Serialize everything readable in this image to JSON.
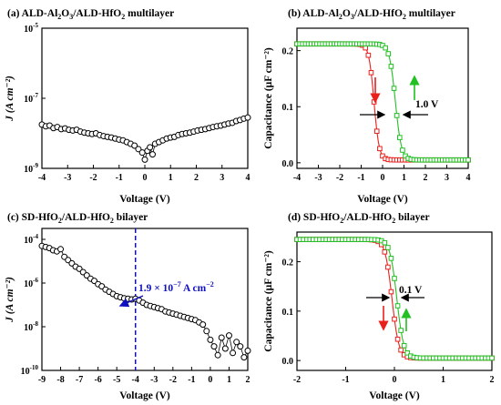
{
  "chart_data": [
    {
      "id": "a",
      "type": "scatter",
      "title_main": "(a) ALD-Al",
      "title_sub1": "2",
      "title_mid1": "O",
      "title_sub2": "3",
      "title_mid2": "/ALD-HfO",
      "title_sub3": "2",
      "title_end": " multilayer",
      "xlabel": "Voltage (V)",
      "ylabel": "J (A cm⁻²)",
      "xlim": [
        -4,
        4
      ],
      "yscale": "log",
      "ylim_exp": [
        -9,
        -5
      ],
      "xticks": [
        "-4",
        "-3",
        "-2",
        "-1",
        "0",
        "1",
        "2",
        "3",
        "4"
      ],
      "ytick_exps": [
        "-5",
        "-7",
        "-9"
      ],
      "series": [
        {
          "marker": "open-circle",
          "color": "#000000",
          "x": [
            -4.0,
            -3.85,
            -3.7,
            -3.55,
            -3.4,
            -3.25,
            -3.1,
            -2.95,
            -2.8,
            -2.65,
            -2.5,
            -2.35,
            -2.2,
            -2.05,
            -1.9,
            -1.75,
            -1.6,
            -1.45,
            -1.3,
            -1.15,
            -1.0,
            -0.85,
            -0.7,
            -0.55,
            -0.4,
            -0.25,
            -0.1,
            0.0,
            0.1,
            0.2,
            0.3,
            0.4,
            0.55,
            0.7,
            0.85,
            1.0,
            1.15,
            1.3,
            1.45,
            1.6,
            1.75,
            1.9,
            2.05,
            2.2,
            2.35,
            2.5,
            2.65,
            2.8,
            2.95,
            3.1,
            3.25,
            3.4,
            3.55,
            3.7,
            3.85,
            4.0
          ],
          "y_log10": [
            -7.75,
            -7.8,
            -7.78,
            -7.85,
            -7.82,
            -7.88,
            -7.86,
            -7.9,
            -7.92,
            -7.9,
            -7.95,
            -7.98,
            -8.0,
            -8.02,
            -8.0,
            -8.05,
            -8.08,
            -8.1,
            -8.12,
            -8.15,
            -8.18,
            -8.2,
            -8.25,
            -8.3,
            -8.35,
            -8.45,
            -8.55,
            -8.75,
            -8.5,
            -8.4,
            -8.6,
            -8.3,
            -8.25,
            -8.2,
            -8.15,
            -8.12,
            -8.1,
            -8.05,
            -8.02,
            -8.0,
            -7.98,
            -7.95,
            -7.92,
            -7.9,
            -7.88,
            -7.85,
            -7.82,
            -7.8,
            -7.78,
            -7.75,
            -7.72,
            -7.7,
            -7.65,
            -7.62,
            -7.58,
            -7.55
          ]
        }
      ]
    },
    {
      "id": "b",
      "type": "line",
      "title_main": "(b) ALD-Al",
      "title_sub1": "2",
      "title_mid1": "O",
      "title_sub2": "3",
      "title_mid2": "/ALD-HfO",
      "title_sub3": "2",
      "title_end": " multilayer",
      "xlabel": "Voltage (V)",
      "ylabel": "Capacitance (μF cm⁻²)",
      "xlim": [
        -4,
        4
      ],
      "ylim": [
        -0.01,
        0.24
      ],
      "xticks": [
        "-4",
        "-3",
        "-2",
        "-1",
        "0",
        "1",
        "2",
        "3",
        "4"
      ],
      "yticks": [
        "0.0",
        "0.1",
        "0.2"
      ],
      "annotation": "1.0 V",
      "series": [
        {
          "color": "#e8201c",
          "marker": "open-square",
          "center": -0.4,
          "width": 0.12
        },
        {
          "color": "#22c022",
          "marker": "open-square",
          "center": 0.6,
          "width": 0.14
        }
      ]
    },
    {
      "id": "c",
      "type": "scatter",
      "title_main": "(c) SD-HfO",
      "title_sub1": "2",
      "title_mid2": "/ALD-HfO",
      "title_sub3": "2",
      "title_end": " bilayer",
      "xlabel": "Voltage (V)",
      "ylabel": "J (A cm⁻²)",
      "xlim": [
        -9,
        2
      ],
      "yscale": "log",
      "ylim_exp": [
        -10,
        -3.5
      ],
      "xticks": [
        "-9",
        "-8",
        "-7",
        "-6",
        "-5",
        "-4",
        "-3",
        "-2",
        "-1",
        "0",
        "1",
        "2"
      ],
      "ytick_exps": [
        "-4",
        "-6",
        "-8",
        "-10"
      ],
      "vline_x": -4,
      "annotation_pre": "1.9 × 10",
      "annotation_sup": "−7",
      "annotation_post": " A cm",
      "annotation_sup2": "−2",
      "series": [
        {
          "marker": "open-circle",
          "color": "#000000",
          "x": [
            -9.0,
            -8.8,
            -8.6,
            -8.4,
            -8.2,
            -8.0,
            -7.8,
            -7.6,
            -7.4,
            -7.2,
            -7.0,
            -6.8,
            -6.6,
            -6.4,
            -6.2,
            -6.0,
            -5.8,
            -5.6,
            -5.4,
            -5.2,
            -5.0,
            -4.8,
            -4.6,
            -4.4,
            -4.2,
            -4.0,
            -3.8,
            -3.6,
            -3.4,
            -3.2,
            -3.0,
            -2.8,
            -2.6,
            -2.4,
            -2.2,
            -2.0,
            -1.8,
            -1.6,
            -1.4,
            -1.2,
            -1.0,
            -0.8,
            -0.6,
            -0.4,
            -0.2,
            0.0,
            0.2,
            0.4,
            0.6,
            0.8,
            1.0,
            1.2,
            1.4,
            1.6,
            1.8,
            2.0
          ],
          "y_log10": [
            -4.3,
            -4.35,
            -4.4,
            -4.5,
            -4.55,
            -4.45,
            -4.8,
            -4.95,
            -5.1,
            -5.25,
            -5.35,
            -5.5,
            -5.65,
            -5.8,
            -5.9,
            -6.05,
            -6.15,
            -6.3,
            -6.4,
            -6.5,
            -6.6,
            -6.65,
            -6.7,
            -6.72,
            -6.75,
            -6.72,
            -6.8,
            -6.9,
            -7.0,
            -7.05,
            -7.1,
            -7.15,
            -7.2,
            -7.3,
            -7.35,
            -7.4,
            -7.45,
            -7.5,
            -7.55,
            -7.6,
            -7.65,
            -7.7,
            -7.8,
            -7.9,
            -8.2,
            -8.6,
            -8.9,
            -9.3,
            -8.5,
            -9.0,
            -8.4,
            -9.2,
            -8.7,
            -8.9,
            -9.4,
            -9.1
          ]
        }
      ]
    },
    {
      "id": "d",
      "type": "line",
      "title_main": "(d) SD-HfO",
      "title_sub1": "2",
      "title_mid2": "/ALD-HfO",
      "title_sub3": "2",
      "title_end": " bilayer",
      "xlabel": "Voltage (V)",
      "ylabel": "Capacitance (μF cm⁻²)",
      "xlim": [
        -2,
        2
      ],
      "ylim": [
        -0.02,
        0.26
      ],
      "xticks": [
        "-2",
        "-1",
        "0",
        "1",
        "2"
      ],
      "yticks": [
        "0.0",
        "0.1",
        "0.2"
      ],
      "annotation": "0.1 V",
      "series": [
        {
          "color": "#e8201c",
          "marker": "open-square",
          "center": -0.05,
          "width": 0.07
        },
        {
          "color": "#22c022",
          "marker": "open-square",
          "center": 0.05,
          "width": 0.07
        }
      ]
    }
  ]
}
